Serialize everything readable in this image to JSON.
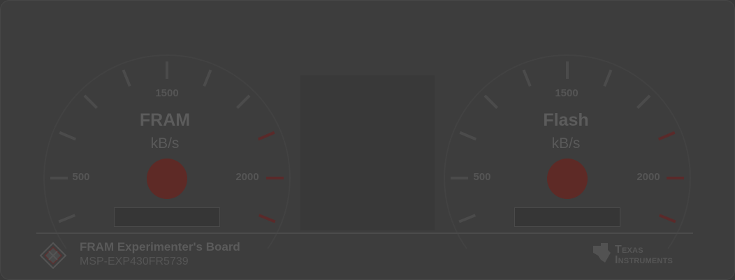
{
  "gauges": [
    {
      "name": "FRAM",
      "unit": "kB/s",
      "ticks": {
        "low": "500",
        "mid": "1500",
        "high": "2000"
      }
    },
    {
      "name": "Flash",
      "unit": "kB/s",
      "ticks": {
        "low": "500",
        "mid": "1500",
        "high": "2000"
      }
    }
  ],
  "footer": {
    "title": "FRAM Experimenter's Board",
    "subtitle": "MSP-EXP430FR5739",
    "brand_line1": "Texas",
    "brand_line2": "Instruments"
  },
  "colors": {
    "background": "#3d3d3d",
    "tick": "#4b4b4b",
    "redline": "#5a2a2a",
    "indicator": "#5e2a26",
    "text": "#5c5c5c"
  }
}
